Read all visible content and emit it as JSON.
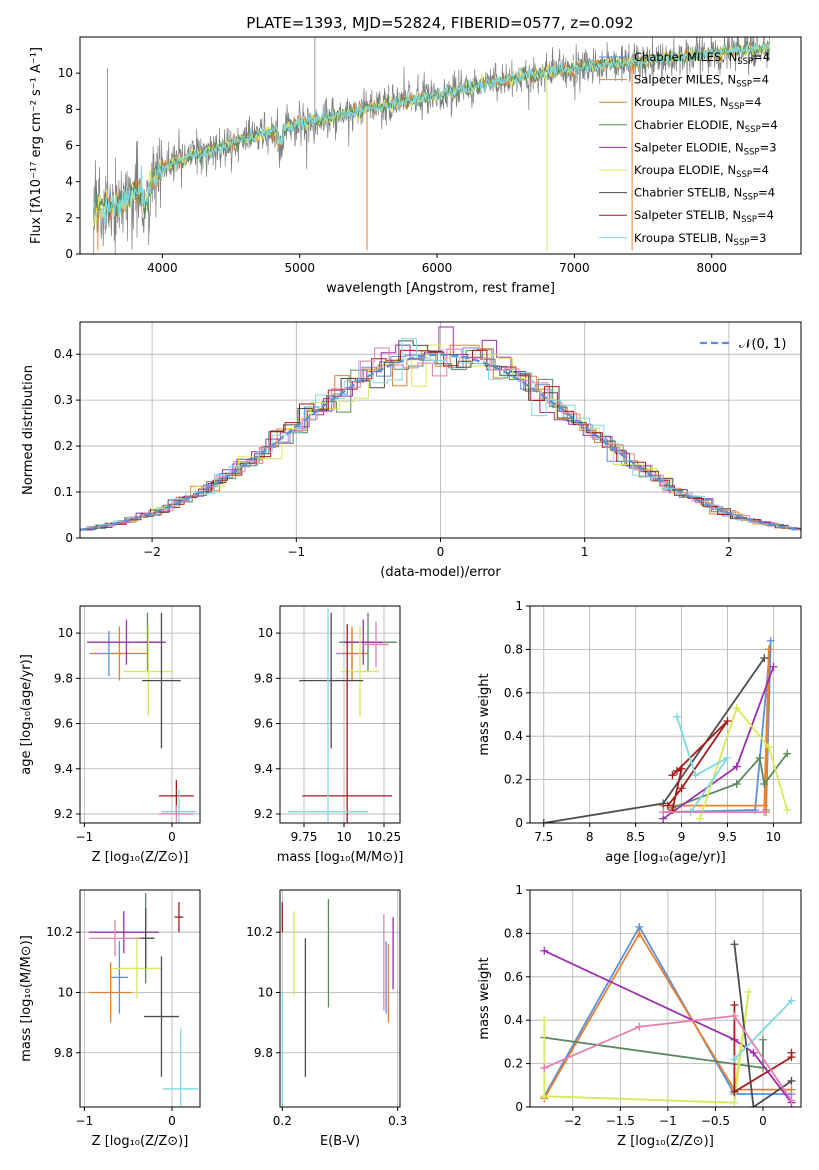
{
  "figure": {
    "title": "PLATE=1393, MJD=52824, FIBERID=0577, z=0.092"
  },
  "colors": {
    "Chabrier MILES": "#5b8fe0",
    "Salpeter MILES": "#e8812e",
    "Kroupa MILES": "#d4832e",
    "Chabrier ELODIE": "#5a8a5e",
    "Salpeter ELODIE": "#9c2fae",
    "Kroupa ELODIE": "#d8e85a",
    "Chabrier STELIB": "#4d4d4d",
    "Salpeter STELIB": "#a41c1c",
    "Kroupa STELIB": "#7fd9e0",
    "extra": "#e57fb0",
    "data": "#7f7f7f",
    "normal": "#5b8fd6"
  },
  "chart_data": [
    {
      "id": "spectrum",
      "type": "line",
      "title": "PLATE=1393, MJD=52824, FIBERID=0577, z=0.092",
      "xlabel": "wavelength [Angstrom, rest frame]",
      "ylabel": "Flux [fλ10⁻¹⁷ erg cm⁻² s⁻¹ A⁻¹]",
      "xlim": [
        3400,
        8650
      ],
      "ylim": [
        0,
        12
      ],
      "xticks": [
        4000,
        5000,
        6000,
        7000,
        8000
      ],
      "yticks": [
        0,
        2,
        4,
        6,
        8,
        10
      ],
      "continuum": [
        [
          3500,
          2.4
        ],
        [
          3600,
          2.6
        ],
        [
          3700,
          2.9
        ],
        [
          3800,
          3.3
        ],
        [
          3900,
          3.9
        ],
        [
          4000,
          4.7
        ],
        [
          4200,
          5.4
        ],
        [
          4500,
          6.1
        ],
        [
          4800,
          6.8
        ],
        [
          5000,
          7.2
        ],
        [
          5300,
          7.7
        ],
        [
          5600,
          8.2
        ],
        [
          6000,
          8.8
        ],
        [
          6300,
          9.3
        ],
        [
          6600,
          9.8
        ],
        [
          7000,
          10.3
        ],
        [
          7400,
          10.6
        ],
        [
          7800,
          10.9
        ],
        [
          8100,
          11.2
        ],
        [
          8400,
          11.4
        ]
      ],
      "legend_position": "upper right",
      "legend": [
        "Chabrier MILES, N_SSP=4",
        "Salpeter MILES, N_SSP=4",
        "Kroupa MILES, N_SSP=4",
        "Chabrier ELODIE, N_SSP=4",
        "Salpeter ELODIE, N_SSP=3",
        "Kroupa ELODIE, N_SSP=4",
        "Chabrier STELIB, N_SSP=4",
        "Salpeter STELIB, N_SSP=4",
        "Kroupa STELIB, N_SSP=3"
      ]
    },
    {
      "id": "residuals",
      "type": "histogram",
      "xlabel": "(data-model)/error",
      "ylabel": "Normed distribution",
      "xlim": [
        -2.5,
        2.5
      ],
      "ylim": [
        0,
        0.47
      ],
      "xticks": [
        -2,
        -1,
        0,
        1,
        2
      ],
      "yticks": [
        0.0,
        0.1,
        0.2,
        0.3,
        0.4
      ],
      "bin_width": 0.1,
      "curve": "N(0,1)",
      "legend": "𝒩(0, 1)",
      "legend_position": "upper right"
    },
    {
      "id": "age_vs_Z",
      "type": "errorbar",
      "xlabel": "Z [log₁₀(Z/Z⊙)]",
      "ylabel": "age  [log₁₀(age/yr)]",
      "xlim": [
        -1.05,
        0.32
      ],
      "ylim": [
        9.16,
        10.12
      ],
      "xticks": [
        -1,
        0
      ],
      "yticks": [
        9.2,
        9.4,
        9.6,
        9.8,
        10.0
      ],
      "points": [
        {
          "c": "Chabrier MILES",
          "x": -0.72,
          "xe": 0.22,
          "y": 9.91,
          "ye": 0.1
        },
        {
          "c": "Salpeter MILES",
          "x": -0.6,
          "xe": 0.32,
          "y": 9.91,
          "ye": 0.12
        },
        {
          "c": "Chabrier ELODIE",
          "x": -0.28,
          "xe": 0.1,
          "y": 9.96,
          "ye": 0.13
        },
        {
          "c": "Salpeter ELODIE",
          "x": -0.52,
          "xe": 0.45,
          "y": 9.96,
          "ye": 0.1
        },
        {
          "c": "Kroupa ELODIE",
          "x": -0.27,
          "xe": 0.28,
          "y": 9.83,
          "ye": 0.2
        },
        {
          "c": "Chabrier STELIB",
          "x": -0.12,
          "xe": 0.22,
          "y": 9.79,
          "ye": 0.3
        },
        {
          "c": "Salpeter STELIB",
          "x": 0.05,
          "xe": 0.2,
          "y": 9.28,
          "ye": 0.07
        },
        {
          "c": "Kroupa STELIB",
          "x": 0.08,
          "xe": 0.2,
          "y": 9.21,
          "ye": 0.1
        },
        {
          "c": "extra",
          "x": 0.05,
          "xe": 0.2,
          "y": 9.2,
          "ye": 0.04
        }
      ]
    },
    {
      "id": "age_vs_mass",
      "type": "errorbar",
      "xlabel": "mass [log₁₀(M/M⊙)]",
      "ylabel": "",
      "xlim": [
        9.6,
        10.35
      ],
      "ylim": [
        9.16,
        10.12
      ],
      "xticks": [
        9.75,
        10.0,
        10.25
      ],
      "yticks": [
        9.2,
        9.4,
        9.6,
        9.8,
        10.0
      ],
      "points": [
        {
          "c": "Chabrier MILES",
          "x": 10.05,
          "xe": 0.1,
          "y": 9.91,
          "ye": 0.1
        },
        {
          "c": "Salpeter MILES",
          "x": 10.05,
          "xe": 0.1,
          "y": 9.91,
          "ye": 0.12
        },
        {
          "c": "Chabrier ELODIE",
          "x": 10.15,
          "xe": 0.18,
          "y": 9.96,
          "ye": 0.13
        },
        {
          "c": "Salpeter ELODIE",
          "x": 10.12,
          "xe": 0.12,
          "y": 9.96,
          "ye": 0.1
        },
        {
          "c": "Kroupa ELODIE",
          "x": 10.1,
          "xe": 0.12,
          "y": 9.83,
          "ye": 0.2
        },
        {
          "c": "Chabrier STELIB",
          "x": 9.92,
          "xe": 0.2,
          "y": 9.79,
          "ye": 0.3
        },
        {
          "c": "Salpeter STELIB",
          "x": 10.02,
          "xe": 0.28,
          "y": 9.28,
          "ye": 0.76
        },
        {
          "c": "Kroupa STELIB",
          "x": 9.9,
          "xe": 0.25,
          "y": 9.21,
          "ye": 0.9
        },
        {
          "c": "extra",
          "x": 10.2,
          "xe": 0.08,
          "y": 9.95,
          "ye": 0.1
        }
      ]
    },
    {
      "id": "weight_vs_age",
      "type": "line",
      "xlabel": "age  [log₁₀(age/yr)]",
      "ylabel": "mass weight",
      "xlim": [
        7.35,
        10.3
      ],
      "ylim": [
        0,
        1.0
      ],
      "xticks": [
        7.5,
        8.0,
        8.5,
        9.0,
        9.5,
        10.0
      ],
      "yticks": [
        0.0,
        0.2,
        0.4,
        0.6,
        0.8,
        1.0
      ],
      "series": [
        {
          "c": "Chabrier MILES",
          "pts": [
            [
              8.8,
              0.05
            ],
            [
              9.8,
              0.06
            ],
            [
              9.97,
              0.84
            ],
            [
              9.92,
              0.06
            ]
          ]
        },
        {
          "c": "Salpeter MILES",
          "pts": [
            [
              8.8,
              0.08
            ],
            [
              9.9,
              0.08
            ],
            [
              9.95,
              0.8
            ],
            [
              9.92,
              0.05
            ]
          ]
        },
        {
          "c": "Chabrier ELODIE",
          "pts": [
            [
              8.9,
              0.07
            ],
            [
              9.6,
              0.18
            ],
            [
              9.85,
              0.3
            ],
            [
              9.9,
              0.18
            ],
            [
              10.15,
              0.32
            ]
          ]
        },
        {
          "c": "Salpeter ELODIE",
          "pts": [
            [
              8.8,
              0.02
            ],
            [
              9.6,
              0.26
            ],
            [
              10.0,
              0.72
            ]
          ]
        },
        {
          "c": "Kroupa ELODIE",
          "pts": [
            [
              9.2,
              0.02
            ],
            [
              9.6,
              0.53
            ],
            [
              9.95,
              0.35
            ],
            [
              10.15,
              0.06
            ]
          ]
        },
        {
          "c": "Chabrier STELIB",
          "pts": [
            [
              7.5,
              0.0
            ],
            [
              8.8,
              0.09
            ],
            [
              9.9,
              0.76
            ]
          ]
        },
        {
          "c": "Salpeter STELIB",
          "pts": [
            [
              8.9,
              0.06
            ],
            [
              9.0,
              0.25
            ],
            [
              8.95,
              0.24
            ],
            [
              8.9,
              0.22
            ],
            [
              9.5,
              0.47
            ],
            [
              9.0,
              0.16
            ],
            [
              8.85,
              0.08
            ]
          ]
        },
        {
          "c": "Kroupa STELIB",
          "pts": [
            [
              8.95,
              0.49
            ],
            [
              9.15,
              0.22
            ],
            [
              9.5,
              0.3
            ],
            [
              9.1,
              0.05
            ]
          ]
        },
        {
          "c": "extra",
          "pts": [
            [
              8.8,
              0.05
            ],
            [
              9.9,
              0.05
            ]
          ]
        }
      ]
    },
    {
      "id": "mass_vs_Z",
      "type": "errorbar",
      "xlabel": "Z [log₁₀(Z/Z⊙)]",
      "ylabel": "mass [log₁₀(M/M⊙)]",
      "xlim": [
        -1.05,
        0.32
      ],
      "ylim": [
        9.62,
        10.34
      ],
      "xticks": [
        -1,
        0
      ],
      "yticks": [
        9.8,
        10.0,
        10.2
      ],
      "points": [
        {
          "c": "Chabrier MILES",
          "x": -0.6,
          "xe": 0.1,
          "y": 10.05,
          "ye": 0.12
        },
        {
          "c": "Salpeter MILES",
          "x": -0.7,
          "xe": 0.25,
          "y": 10.0,
          "ye": 0.1
        },
        {
          "c": "Chabrier ELODIE",
          "x": -0.3,
          "xe": 0.1,
          "y": 10.18,
          "ye": 0.15
        },
        {
          "c": "Salpeter ELODIE",
          "x": -0.55,
          "xe": 0.4,
          "y": 10.2,
          "ye": 0.07
        },
        {
          "c": "Kroupa ELODIE",
          "x": -0.4,
          "xe": 0.28,
          "y": 10.08,
          "ye": 0.1
        },
        {
          "c": "Chabrier STELIB",
          "x": -0.12,
          "xe": 0.2,
          "y": 9.92,
          "ye": 0.2
        },
        {
          "c": "Chabrier STELIB",
          "x": -0.3,
          "xe": 0.1,
          "y": 10.18,
          "ye": 0.1
        },
        {
          "c": "Salpeter STELIB",
          "x": 0.08,
          "xe": 0.05,
          "y": 10.25,
          "ye": 0.05
        },
        {
          "c": "Kroupa STELIB",
          "x": 0.1,
          "xe": 0.2,
          "y": 9.68,
          "ye": 0.2
        },
        {
          "c": "extra",
          "x": -0.65,
          "xe": 0.3,
          "y": 10.18,
          "ye": 0.06
        }
      ]
    },
    {
      "id": "mass_vs_ebv",
      "type": "errorbar",
      "xlabel": "E(B-V)",
      "ylabel": "",
      "xlim": [
        0.198,
        0.302
      ],
      "ylim": [
        9.62,
        10.34
      ],
      "xticks": [
        0.2,
        0.3
      ],
      "yticks": [
        9.8,
        10.0,
        10.2
      ],
      "points": [
        {
          "c": "Salpeter STELIB",
          "x": 0.2,
          "xe": 0,
          "y": 10.25,
          "ye": 0.05
        },
        {
          "c": "Kroupa STELIB",
          "x": 0.2,
          "xe": 0,
          "y": 9.8,
          "ye": 0.2
        },
        {
          "c": "Kroupa ELODIE",
          "x": 0.21,
          "xe": 0,
          "y": 10.13,
          "ye": 0.14
        },
        {
          "c": "Chabrier STELIB",
          "x": 0.22,
          "xe": 0,
          "y": 9.95,
          "ye": 0.23
        },
        {
          "c": "Chabrier ELODIE",
          "x": 0.24,
          "xe": 0,
          "y": 10.13,
          "ye": 0.18
        },
        {
          "c": "extra",
          "x": 0.288,
          "xe": 0,
          "y": 10.1,
          "ye": 0.16
        },
        {
          "c": "Chabrier MILES",
          "x": 0.29,
          "xe": 0,
          "y": 10.05,
          "ye": 0.12
        },
        {
          "c": "Salpeter MILES",
          "x": 0.292,
          "xe": 0,
          "y": 10.03,
          "ye": 0.13
        },
        {
          "c": "Salpeter ELODIE",
          "x": 0.296,
          "xe": 0,
          "y": 10.13,
          "ye": 0.12
        }
      ]
    },
    {
      "id": "weight_vs_Z",
      "type": "line",
      "xlabel": "Z [log₁₀(Z/Z⊙)]",
      "ylabel": "mass weight",
      "xlim": [
        -2.45,
        0.4
      ],
      "ylim": [
        0,
        1.0
      ],
      "xticks": [
        -2.0,
        -1.5,
        -1.0,
        -0.5,
        0.0
      ],
      "yticks": [
        0.0,
        0.2,
        0.4,
        0.6,
        0.8,
        1.0
      ],
      "series": [
        {
          "c": "Chabrier MILES",
          "pts": [
            [
              -2.3,
              0.05
            ],
            [
              -1.3,
              0.83
            ],
            [
              -0.3,
              0.06
            ],
            [
              0.3,
              0.06
            ]
          ]
        },
        {
          "c": "Salpeter MILES",
          "pts": [
            [
              -2.3,
              0.04
            ],
            [
              -1.3,
              0.8
            ],
            [
              -0.3,
              0.08
            ],
            [
              0.3,
              0.08
            ]
          ]
        },
        {
          "c": "Chabrier ELODIE",
          "pts": [
            [
              -2.3,
              0.32
            ],
            [
              0.0,
              0.18
            ],
            [
              0.0,
              0.31
            ]
          ]
        },
        {
          "c": "Salpeter ELODIE",
          "pts": [
            [
              -2.3,
              0.72
            ],
            [
              -0.3,
              0.31
            ],
            [
              -0.1,
              0.25
            ],
            [
              0.3,
              0.02
            ]
          ]
        },
        {
          "c": "Kroupa ELODIE",
          "pts": [
            [
              -2.3,
              0.4
            ],
            [
              -2.3,
              0.05
            ],
            [
              -0.3,
              0.02
            ],
            [
              -0.15,
              0.53
            ],
            [
              -0.3,
              0.07
            ]
          ]
        },
        {
          "c": "Chabrier STELIB",
          "pts": [
            [
              -0.3,
              0.75
            ],
            [
              -0.1,
              0.0
            ],
            [
              0.3,
              0.12
            ]
          ]
        },
        {
          "c": "Salpeter STELIB",
          "pts": [
            [
              -0.3,
              0.47
            ],
            [
              -0.3,
              0.07
            ],
            [
              0.3,
              0.23
            ],
            [
              0.3,
              0.25
            ]
          ]
        },
        {
          "c": "Kroupa STELIB",
          "pts": [
            [
              -0.3,
              0.22
            ],
            [
              0.3,
              0.49
            ]
          ]
        },
        {
          "c": "extra",
          "pts": [
            [
              -2.3,
              0.18
            ],
            [
              -1.3,
              0.37
            ],
            [
              -0.3,
              0.42
            ],
            [
              0.3,
              0.03
            ]
          ]
        }
      ]
    }
  ]
}
